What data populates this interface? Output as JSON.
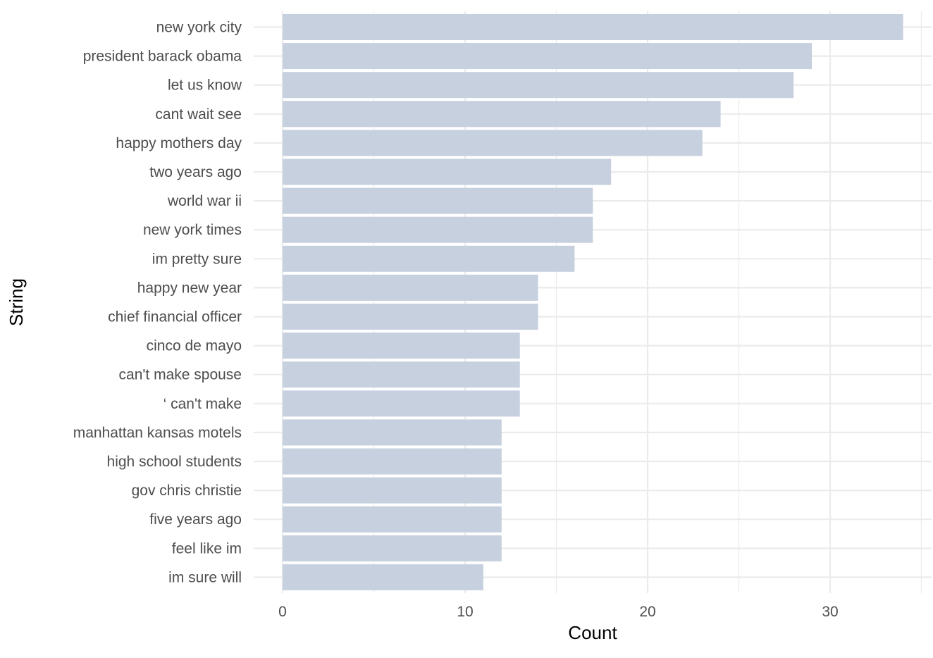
{
  "chart_data": {
    "type": "bar",
    "orientation": "horizontal",
    "title": "",
    "xlabel": "Count",
    "ylabel": "String",
    "categories": [
      "new york city",
      "president barack obama",
      "let us know",
      "cant wait see",
      "happy mothers day",
      "two years ago",
      "world war ii",
      "new york times",
      "im pretty sure",
      "happy new year",
      "chief financial officer",
      "cinco de mayo",
      "can't make spouse",
      "‘ can't make",
      "manhattan kansas motels",
      "high school students",
      "gov chris christie",
      "five years ago",
      "feel like im",
      "im sure will"
    ],
    "values": [
      34,
      29,
      28,
      24,
      23,
      18,
      17,
      17,
      16,
      14,
      14,
      13,
      13,
      13,
      12,
      12,
      12,
      12,
      12,
      11
    ],
    "x_ticks": [
      "0",
      "10",
      "20",
      "30"
    ],
    "xlim": [
      0,
      35
    ],
    "grid": true,
    "legend": "none",
    "bar_color": "#c6d0de",
    "grid_color": "#ebebeb"
  }
}
